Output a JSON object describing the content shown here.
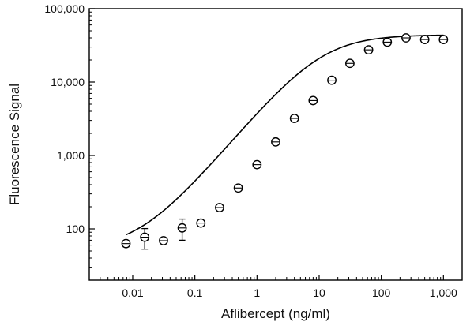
{
  "chart_data": {
    "type": "scatter",
    "title": "",
    "xlabel": "Aflibercept (ng/ml)",
    "ylabel": "Fluorescence Signal",
    "x_scale": "log",
    "y_scale": "log",
    "xlim": [
      0.002,
      2000
    ],
    "ylim": [
      20,
      100000
    ],
    "x_ticks": [
      0.01,
      0.1,
      1,
      10,
      100,
      1000
    ],
    "x_tick_labels": [
      "0.01",
      "0.1",
      "1",
      "10",
      "100",
      "1,000"
    ],
    "y_ticks": [
      100,
      1000,
      10000,
      100000
    ],
    "y_tick_labels": [
      "100",
      "1,000",
      "10,000",
      "100,000"
    ],
    "grid": false,
    "legend": "none",
    "series": [
      {
        "marker": "open-circle",
        "points": [
          {
            "x": 0.0078,
            "y": 63,
            "err": 6
          },
          {
            "x": 0.0156,
            "y": 77,
            "err": 24
          },
          {
            "x": 0.0313,
            "y": 69,
            "err": 6
          },
          {
            "x": 0.0625,
            "y": 103,
            "err": 33
          },
          {
            "x": 0.125,
            "y": 120,
            "err": 8
          },
          {
            "x": 0.25,
            "y": 195,
            "err": 12
          },
          {
            "x": 0.5,
            "y": 360,
            "err": 25
          },
          {
            "x": 1,
            "y": 750,
            "err": 50
          },
          {
            "x": 2,
            "y": 1530,
            "err": 100
          },
          {
            "x": 4,
            "y": 3200,
            "err": 220
          },
          {
            "x": 8,
            "y": 5600,
            "err": 400
          },
          {
            "x": 16,
            "y": 10600,
            "err": 800
          },
          {
            "x": 31.25,
            "y": 18000,
            "err": 1300
          },
          {
            "x": 62.5,
            "y": 27500,
            "err": 2200
          },
          {
            "x": 125,
            "y": 35000,
            "err": 2700
          },
          {
            "x": 250,
            "y": 40000,
            "err": 3000
          },
          {
            "x": 500,
            "y": 38000,
            "err": 3000
          },
          {
            "x": 1000,
            "y": 38000,
            "err": 3000
          }
        ]
      }
    ],
    "fit_curve": {
      "type": "4PL",
      "bottom": 52,
      "top": 44000,
      "ec50": 11,
      "hill": 1.0,
      "x_range": [
        0.0078,
        1000
      ]
    }
  }
}
